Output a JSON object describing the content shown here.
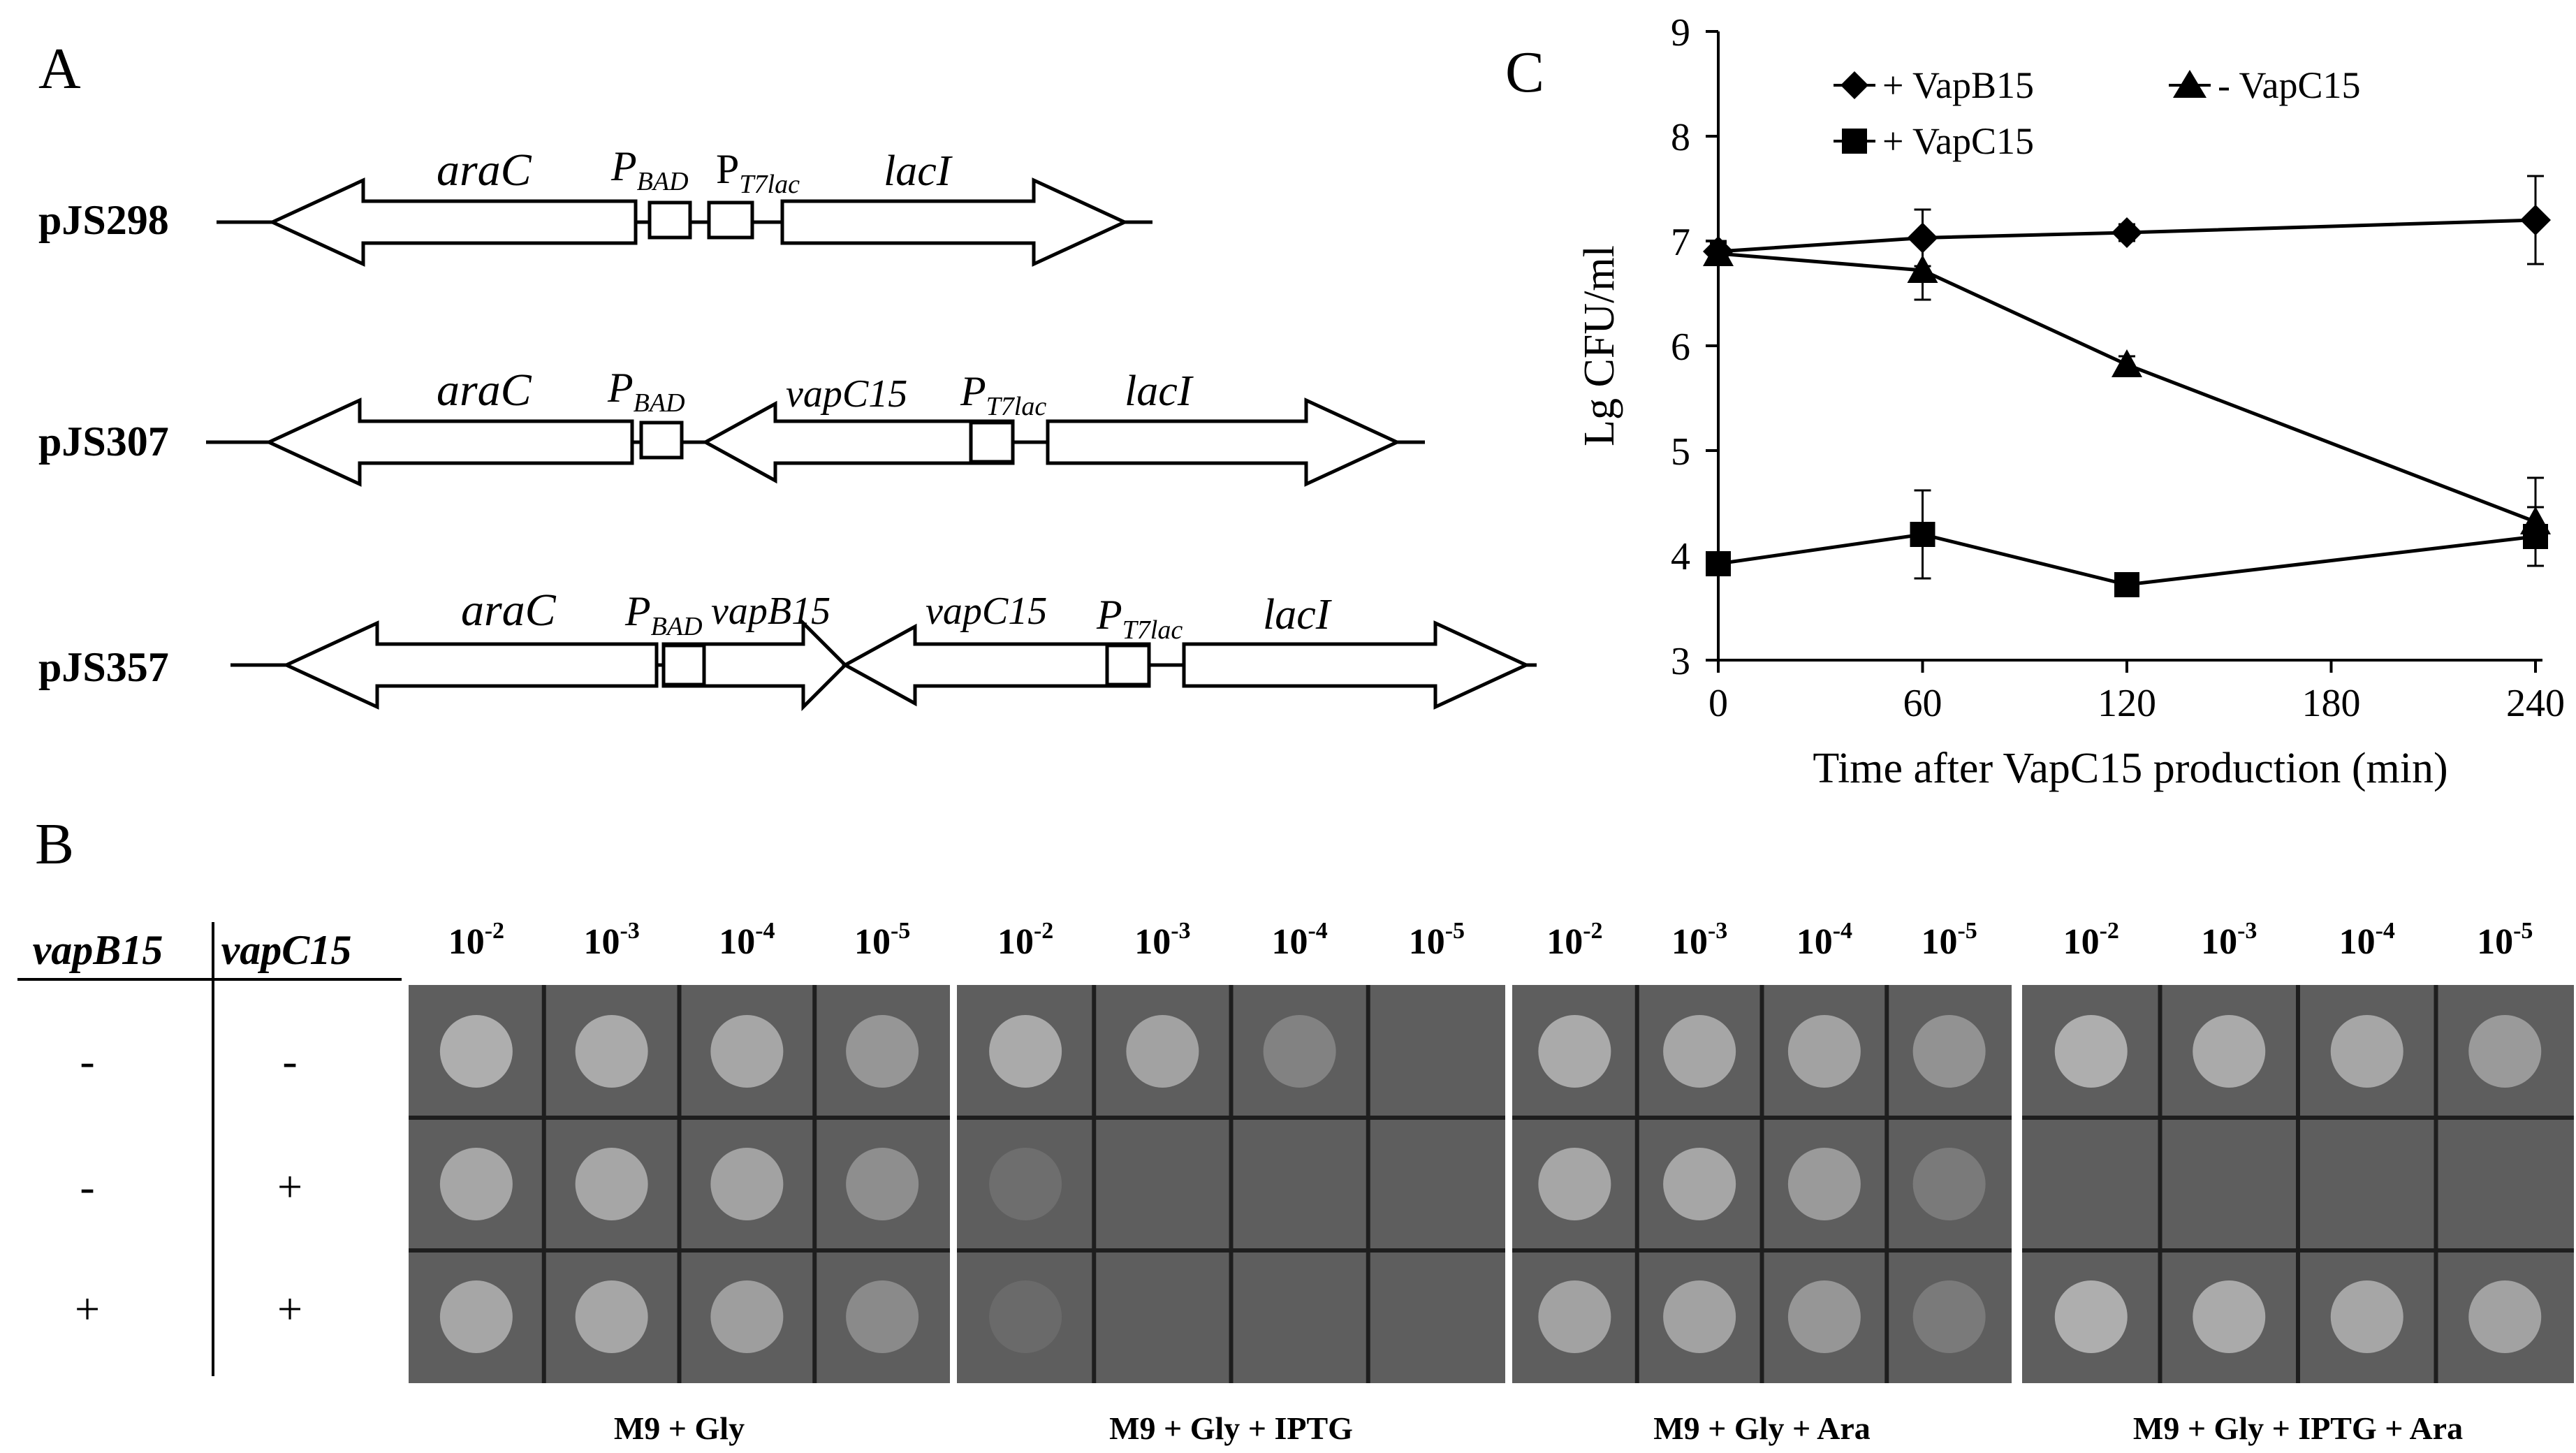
{
  "panels": {
    "a": "A",
    "b": "B",
    "c": "C"
  },
  "panel_a": {
    "plasmids": [
      {
        "name": "pJS298",
        "genes": {
          "araC": "araC",
          "lacI": "lacI"
        },
        "promoters": {
          "bad_main": "P",
          "bad_sub": "BAD",
          "t7_main": "P",
          "t7_sub": "T7lac"
        }
      },
      {
        "name": "pJS307",
        "genes": {
          "araC": "araC",
          "vapC15": "vapC15",
          "lacI": "lacI"
        },
        "promoters": {
          "bad_main": "P",
          "bad_sub": "BAD",
          "t7_main": "P",
          "t7_sub": "T7lac"
        }
      },
      {
        "name": "pJS357",
        "genes": {
          "araC": "araC",
          "vapB15": "vapB15",
          "vapC15": "vapC15",
          "lacI": "lacI"
        },
        "promoters": {
          "bad_main": "P",
          "bad_sub": "BAD",
          "t7_main": "P",
          "t7_sub": "T7lac"
        }
      }
    ]
  },
  "panel_b": {
    "headers": {
      "vapB15": "vapB15",
      "vapC15": "vapC15"
    },
    "rows": [
      {
        "vapB15": "-",
        "vapC15": "-"
      },
      {
        "vapB15": "-",
        "vapC15": "+"
      },
      {
        "vapB15": "+",
        "vapC15": "+"
      }
    ],
    "dilution_base": "10",
    "dilution_exps": [
      "-2",
      "-3",
      "-4",
      "-5"
    ],
    "plates": [
      {
        "label": "M9 + Gly",
        "growth": [
          [
            1.0,
            0.95,
            0.9,
            0.7
          ],
          [
            0.9,
            0.9,
            0.85,
            0.6
          ],
          [
            0.9,
            0.9,
            0.8,
            0.55
          ]
        ]
      },
      {
        "label": "M9 + Gly + IPTG",
        "growth": [
          [
            0.95,
            0.85,
            0.45,
            0.0
          ],
          [
            0.2,
            0.0,
            0.0,
            0.0
          ],
          [
            0.15,
            0.0,
            0.0,
            0.0
          ]
        ]
      },
      {
        "label": "M9 + Gly + Ara",
        "growth": [
          [
            0.95,
            0.9,
            0.85,
            0.65
          ],
          [
            0.9,
            0.9,
            0.75,
            0.35
          ],
          [
            0.85,
            0.85,
            0.7,
            0.35
          ]
        ]
      },
      {
        "label": "M9 + Gly + IPTG + Ara",
        "growth": [
          [
            1.0,
            0.95,
            0.9,
            0.75
          ],
          [
            0.0,
            0.0,
            0.0,
            0.0
          ],
          [
            1.0,
            0.95,
            0.9,
            0.85
          ]
        ]
      }
    ]
  },
  "chart_data": {
    "type": "line",
    "xlabel": "Time after VapC15 production (min)",
    "ylabel": "Lg CFU/ml",
    "xlim": [
      0,
      240
    ],
    "ylim": [
      3,
      9
    ],
    "xticks": [
      0,
      60,
      120,
      180,
      240
    ],
    "yticks": [
      3,
      4,
      5,
      6,
      7,
      8,
      9
    ],
    "legend_position": "top",
    "series": [
      {
        "name": "+ VapB15",
        "marker": "diamond",
        "x": [
          0,
          60,
          120,
          240
        ],
        "y": [
          6.9,
          7.03,
          7.08,
          7.2
        ],
        "err": [
          0.1,
          0.27,
          0.08,
          0.42
        ]
      },
      {
        "name": "- VapC15",
        "marker": "triangle",
        "x": [
          0,
          60,
          120,
          240
        ],
        "y": [
          6.88,
          6.72,
          5.82,
          4.32
        ],
        "err": [
          0.1,
          0.28,
          0.08,
          0.42
        ]
      },
      {
        "name": "+ VapC15",
        "marker": "square",
        "x": [
          0,
          60,
          120,
          240
        ],
        "y": [
          3.92,
          4.2,
          3.72,
          4.18
        ],
        "err": [
          0.05,
          0.42,
          0.1,
          0.28
        ]
      }
    ]
  }
}
